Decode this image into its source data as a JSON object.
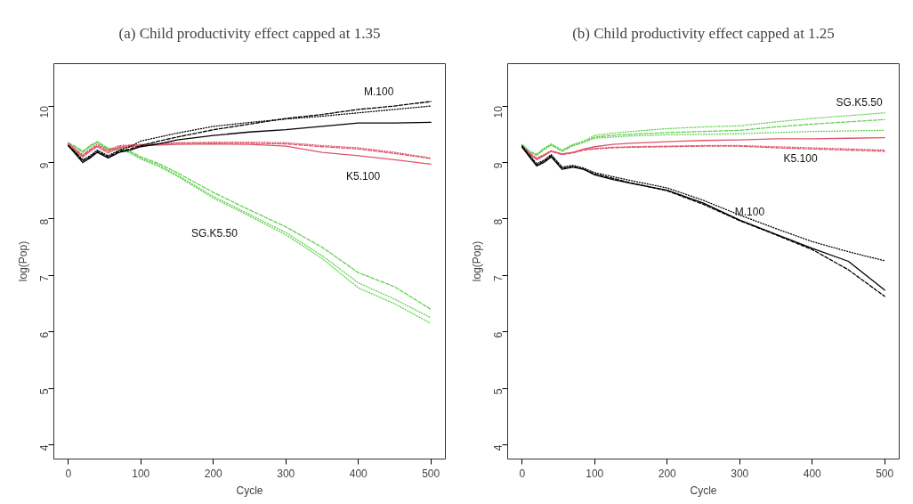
{
  "chart_data": [
    {
      "type": "line",
      "title": "(a) Child productivity effect capped at 1.35",
      "xlabel": "Cycle",
      "ylabel": "log(Pop)",
      "x": [
        0,
        10,
        20,
        30,
        40,
        55,
        70,
        85,
        100,
        125,
        150,
        200,
        250,
        300,
        350,
        400,
        450,
        500
      ],
      "xlim": [
        -20,
        520
      ],
      "ylim": [
        3.75,
        10.75
      ],
      "xticks": [
        0,
        100,
        200,
        300,
        400,
        500
      ],
      "yticks": [
        4,
        5,
        6,
        7,
        8,
        9,
        10
      ],
      "series": [
        {
          "color": "#000000",
          "line_style": "solid",
          "values": [
            9.3,
            9.15,
            9.0,
            9.08,
            9.18,
            9.08,
            9.18,
            9.22,
            9.28,
            9.33,
            9.4,
            9.48,
            9.54,
            9.58,
            9.64,
            9.7,
            9.7,
            9.71
          ]
        },
        {
          "color": "#000000",
          "line_style": "dashed",
          "values": [
            9.3,
            9.17,
            9.03,
            9.1,
            9.2,
            9.1,
            9.2,
            9.24,
            9.3,
            9.38,
            9.45,
            9.58,
            9.68,
            9.78,
            9.85,
            9.94,
            10.0,
            10.08
          ]
        },
        {
          "color": "#000000",
          "line_style": "dotted",
          "values": [
            9.3,
            9.18,
            9.05,
            9.12,
            9.22,
            9.12,
            9.22,
            9.28,
            9.38,
            9.45,
            9.52,
            9.64,
            9.71,
            9.77,
            9.82,
            9.88,
            9.94,
            10.0
          ]
        },
        {
          "color": "#df536b",
          "line_style": "solid",
          "values": [
            9.32,
            9.2,
            9.1,
            9.2,
            9.28,
            9.17,
            9.26,
            9.28,
            9.3,
            9.31,
            9.32,
            9.33,
            9.32,
            9.29,
            9.18,
            9.12,
            9.05,
            8.97
          ]
        },
        {
          "color": "#df536b",
          "line_style": "dashed",
          "values": [
            9.33,
            9.22,
            9.12,
            9.22,
            9.3,
            9.2,
            9.28,
            9.3,
            9.31,
            9.33,
            9.34,
            9.34,
            9.34,
            9.33,
            9.28,
            9.24,
            9.16,
            9.07
          ]
        },
        {
          "color": "#df536b",
          "line_style": "dotted",
          "values": [
            9.34,
            9.23,
            9.14,
            9.24,
            9.32,
            9.22,
            9.3,
            9.31,
            9.32,
            9.34,
            9.35,
            9.36,
            9.36,
            9.35,
            9.3,
            9.26,
            9.18,
            9.08
          ]
        },
        {
          "color": "#61d04f",
          "line_style": "dashed",
          "values": [
            9.35,
            9.28,
            9.2,
            9.3,
            9.37,
            9.25,
            9.25,
            9.2,
            9.1,
            8.98,
            8.82,
            8.47,
            8.16,
            7.86,
            7.5,
            7.05,
            6.8,
            6.4
          ]
        },
        {
          "color": "#61d04f",
          "line_style": "dotted",
          "values": [
            9.34,
            9.27,
            9.19,
            9.29,
            9.36,
            9.24,
            9.24,
            9.18,
            9.08,
            8.95,
            8.78,
            8.4,
            8.08,
            7.76,
            7.35,
            6.87,
            6.58,
            6.25
          ]
        },
        {
          "color": "#61d04f",
          "line_style": "dotted",
          "values": [
            9.33,
            9.26,
            9.18,
            9.28,
            9.35,
            9.23,
            9.23,
            9.17,
            9.06,
            8.93,
            8.76,
            8.37,
            8.05,
            7.72,
            7.3,
            6.78,
            6.5,
            6.15
          ]
        }
      ],
      "annotations": [
        "M.100",
        "K5.100",
        "SG.K5.50"
      ]
    },
    {
      "type": "line",
      "title": "(b) Child productivity effect capped at 1.25",
      "xlabel": "Cycle",
      "ylabel": "log(Pop)",
      "x": [
        0,
        10,
        20,
        30,
        40,
        55,
        70,
        85,
        100,
        125,
        150,
        200,
        250,
        300,
        350,
        400,
        450,
        500
      ],
      "xlim": [
        -20,
        520
      ],
      "ylim": [
        3.75,
        10.75
      ],
      "xticks": [
        0,
        100,
        200,
        300,
        400,
        500
      ],
      "yticks": [
        4,
        5,
        6,
        7,
        8,
        9,
        10
      ],
      "series": [
        {
          "color": "#000000",
          "line_style": "solid",
          "values": [
            9.27,
            9.1,
            8.94,
            9.0,
            9.1,
            8.88,
            8.92,
            8.88,
            8.78,
            8.7,
            8.63,
            8.51,
            8.28,
            7.98,
            7.73,
            7.48,
            7.25,
            6.74
          ]
        },
        {
          "color": "#000000",
          "line_style": "dashed",
          "values": [
            9.28,
            9.12,
            8.96,
            9.02,
            9.12,
            8.9,
            8.93,
            8.88,
            8.8,
            8.72,
            8.64,
            8.5,
            8.26,
            7.97,
            7.72,
            7.46,
            7.1,
            6.63
          ]
        },
        {
          "color": "#000000",
          "line_style": "dotted",
          "values": [
            9.29,
            9.13,
            8.98,
            9.04,
            9.14,
            8.92,
            8.95,
            8.9,
            8.82,
            8.75,
            8.68,
            8.55,
            8.33,
            8.07,
            7.83,
            7.6,
            7.42,
            7.26
          ]
        },
        {
          "color": "#df536b",
          "line_style": "solid",
          "values": [
            9.3,
            9.15,
            9.05,
            9.12,
            9.2,
            9.15,
            9.18,
            9.24,
            9.28,
            9.32,
            9.34,
            9.37,
            9.39,
            9.4,
            9.42,
            9.42,
            9.43,
            9.44
          ]
        },
        {
          "color": "#df536b",
          "line_style": "dashed",
          "values": [
            9.3,
            9.16,
            9.07,
            9.13,
            9.2,
            9.14,
            9.17,
            9.22,
            9.24,
            9.26,
            9.27,
            9.28,
            9.29,
            9.29,
            9.26,
            9.24,
            9.22,
            9.2
          ]
        },
        {
          "color": "#df536b",
          "line_style": "dotted",
          "values": [
            9.3,
            9.17,
            9.08,
            9.14,
            9.21,
            9.15,
            9.18,
            9.23,
            9.25,
            9.27,
            9.28,
            9.29,
            9.3,
            9.3,
            9.28,
            9.26,
            9.24,
            9.22
          ]
        },
        {
          "color": "#61d04f",
          "line_style": "dotted",
          "values": [
            9.32,
            9.2,
            9.15,
            9.25,
            9.33,
            9.22,
            9.32,
            9.38,
            9.48,
            9.52,
            9.55,
            9.6,
            9.63,
            9.65,
            9.72,
            9.78,
            9.83,
            9.88
          ]
        },
        {
          "color": "#61d04f",
          "line_style": "dashed",
          "values": [
            9.31,
            9.19,
            9.13,
            9.23,
            9.31,
            9.2,
            9.3,
            9.36,
            9.45,
            9.48,
            9.5,
            9.53,
            9.55,
            9.57,
            9.63,
            9.68,
            9.72,
            9.76
          ]
        },
        {
          "color": "#61d04f",
          "line_style": "dotted",
          "values": [
            9.31,
            9.19,
            9.13,
            9.23,
            9.31,
            9.2,
            9.3,
            9.36,
            9.43,
            9.45,
            9.47,
            9.49,
            9.5,
            9.51,
            9.53,
            9.55,
            9.56,
            9.57
          ]
        }
      ],
      "annotations": [
        "SG.K5.50",
        "K5.100",
        "M.100"
      ]
    }
  ]
}
